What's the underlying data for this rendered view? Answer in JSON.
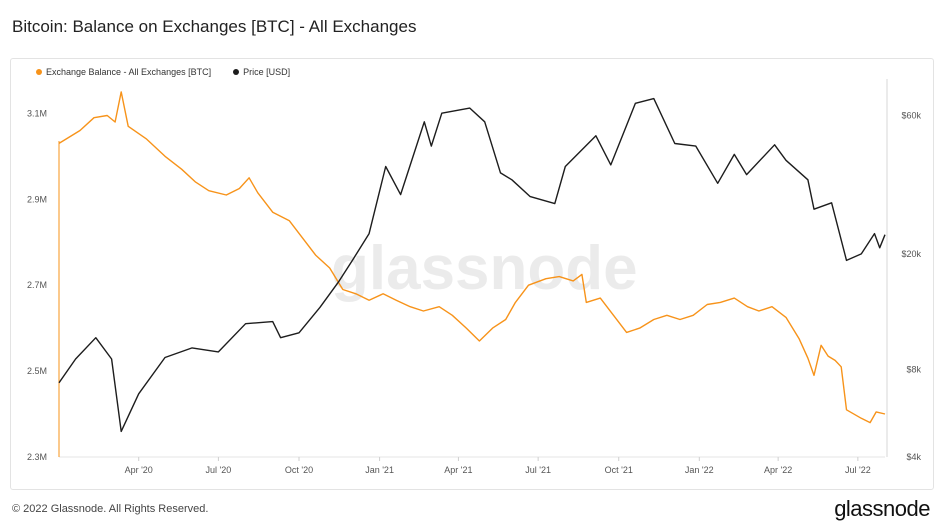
{
  "title": "Bitcoin: Balance on Exchanges [BTC] - All Exchanges",
  "footer": {
    "copyright": "© 2022 Glassnode. All Rights Reserved.",
    "brand": "glassnode"
  },
  "watermark": "glassnode",
  "chart_data": {
    "type": "line",
    "title": "Bitcoin: Balance on Exchanges [BTC] - All Exchanges",
    "legend_placement": "top-left",
    "grid": false,
    "colors": {
      "balance": "#f7931a",
      "price": "#1d1d1d"
    },
    "x_ticks": [
      "Apr '20",
      "Jul '20",
      "Oct '20",
      "Jan '21",
      "Apr '21",
      "Jul '21",
      "Oct '21",
      "Jan '22",
      "Apr '22",
      "Jul '22"
    ],
    "x_range": [
      "2020-01-01",
      "2022-08-01"
    ],
    "y_left": {
      "ticks": [
        "3.1M",
        "2.9M",
        "2.7M",
        "2.5M",
        "2.3M"
      ],
      "range": [
        2300000,
        3180000
      ]
    },
    "y_right": {
      "ticks": [
        "$60k",
        "$20k",
        "$8k",
        "$4k"
      ],
      "scale": "log",
      "range": [
        4000,
        80000
      ]
    },
    "series": [
      {
        "name": "Exchange Balance - All Exchanges [BTC]",
        "axis": "left",
        "points": [
          [
            "2020-01-01",
            3030000
          ],
          [
            "2020-01-25",
            3060000
          ],
          [
            "2020-02-10",
            3090000
          ],
          [
            "2020-02-25",
            3095000
          ],
          [
            "2020-03-05",
            3080000
          ],
          [
            "2020-03-12",
            3150000
          ],
          [
            "2020-03-20",
            3070000
          ],
          [
            "2020-04-10",
            3040000
          ],
          [
            "2020-05-01",
            3000000
          ],
          [
            "2020-05-20",
            2970000
          ],
          [
            "2020-06-05",
            2940000
          ],
          [
            "2020-06-20",
            2920000
          ],
          [
            "2020-07-10",
            2910000
          ],
          [
            "2020-07-25",
            2925000
          ],
          [
            "2020-08-05",
            2950000
          ],
          [
            "2020-08-15",
            2915000
          ],
          [
            "2020-09-01",
            2870000
          ],
          [
            "2020-09-20",
            2850000
          ],
          [
            "2020-10-05",
            2810000
          ],
          [
            "2020-10-20",
            2770000
          ],
          [
            "2020-11-05",
            2740000
          ],
          [
            "2020-11-20",
            2690000
          ],
          [
            "2020-12-05",
            2680000
          ],
          [
            "2020-12-20",
            2665000
          ],
          [
            "2021-01-05",
            2680000
          ],
          [
            "2021-01-20",
            2665000
          ],
          [
            "2021-02-05",
            2650000
          ],
          [
            "2021-02-20",
            2640000
          ],
          [
            "2021-03-10",
            2650000
          ],
          [
            "2021-03-25",
            2630000
          ],
          [
            "2021-04-10",
            2600000
          ],
          [
            "2021-04-25",
            2570000
          ],
          [
            "2021-05-10",
            2600000
          ],
          [
            "2021-05-25",
            2620000
          ],
          [
            "2021-06-05",
            2660000
          ],
          [
            "2021-06-20",
            2700000
          ],
          [
            "2021-07-10",
            2715000
          ],
          [
            "2021-07-25",
            2720000
          ],
          [
            "2021-08-10",
            2710000
          ],
          [
            "2021-08-20",
            2725000
          ],
          [
            "2021-08-25",
            2660000
          ],
          [
            "2021-09-10",
            2670000
          ],
          [
            "2021-09-25",
            2630000
          ],
          [
            "2021-10-10",
            2590000
          ],
          [
            "2021-10-25",
            2600000
          ],
          [
            "2021-11-10",
            2620000
          ],
          [
            "2021-11-25",
            2630000
          ],
          [
            "2021-12-10",
            2620000
          ],
          [
            "2021-12-25",
            2630000
          ],
          [
            "2022-01-10",
            2655000
          ],
          [
            "2022-01-25",
            2660000
          ],
          [
            "2022-02-10",
            2670000
          ],
          [
            "2022-02-25",
            2650000
          ],
          [
            "2022-03-10",
            2640000
          ],
          [
            "2022-03-25",
            2650000
          ],
          [
            "2022-04-10",
            2625000
          ],
          [
            "2022-04-25",
            2575000
          ],
          [
            "2022-05-05",
            2530000
          ],
          [
            "2022-05-12",
            2490000
          ],
          [
            "2022-05-20",
            2560000
          ],
          [
            "2022-05-28",
            2535000
          ],
          [
            "2022-06-05",
            2525000
          ],
          [
            "2022-06-12",
            2510000
          ],
          [
            "2022-06-18",
            2410000
          ],
          [
            "2022-07-05",
            2390000
          ],
          [
            "2022-07-15",
            2380000
          ],
          [
            "2022-07-22",
            2405000
          ],
          [
            "2022-08-01",
            2400000
          ]
        ]
      },
      {
        "name": "Price [USD]",
        "axis": "right",
        "points": [
          [
            "2020-01-01",
            7200
          ],
          [
            "2020-01-20",
            8700
          ],
          [
            "2020-02-12",
            10300
          ],
          [
            "2020-03-01",
            8700
          ],
          [
            "2020-03-12",
            4900
          ],
          [
            "2020-04-01",
            6600
          ],
          [
            "2020-05-01",
            8800
          ],
          [
            "2020-06-01",
            9500
          ],
          [
            "2020-07-01",
            9200
          ],
          [
            "2020-08-01",
            11500
          ],
          [
            "2020-09-01",
            11700
          ],
          [
            "2020-09-10",
            10300
          ],
          [
            "2020-10-01",
            10700
          ],
          [
            "2020-10-25",
            13100
          ],
          [
            "2020-11-15",
            16000
          ],
          [
            "2020-12-01",
            19000
          ],
          [
            "2020-12-20",
            23500
          ],
          [
            "2021-01-08",
            40000
          ],
          [
            "2021-01-25",
            32000
          ],
          [
            "2021-02-10",
            45000
          ],
          [
            "2021-02-21",
            57000
          ],
          [
            "2021-03-01",
            47000
          ],
          [
            "2021-03-13",
            61000
          ],
          [
            "2021-04-14",
            63500
          ],
          [
            "2021-05-01",
            57000
          ],
          [
            "2021-05-19",
            38000
          ],
          [
            "2021-06-01",
            36000
          ],
          [
            "2021-06-22",
            31500
          ],
          [
            "2021-07-20",
            29800
          ],
          [
            "2021-08-01",
            40000
          ],
          [
            "2021-09-05",
            51000
          ],
          [
            "2021-09-22",
            40500
          ],
          [
            "2021-10-20",
            66000
          ],
          [
            "2021-11-10",
            68500
          ],
          [
            "2021-12-04",
            48000
          ],
          [
            "2021-12-28",
            47000
          ],
          [
            "2022-01-22",
            35000
          ],
          [
            "2022-02-10",
            44000
          ],
          [
            "2022-02-24",
            37500
          ],
          [
            "2022-03-28",
            47500
          ],
          [
            "2022-04-10",
            42000
          ],
          [
            "2022-05-05",
            36000
          ],
          [
            "2022-05-12",
            28500
          ],
          [
            "2022-06-01",
            30000
          ],
          [
            "2022-06-18",
            19000
          ],
          [
            "2022-07-05",
            20000
          ],
          [
            "2022-07-20",
            23500
          ],
          [
            "2022-07-26",
            21000
          ],
          [
            "2022-08-01",
            23300
          ]
        ]
      }
    ]
  }
}
